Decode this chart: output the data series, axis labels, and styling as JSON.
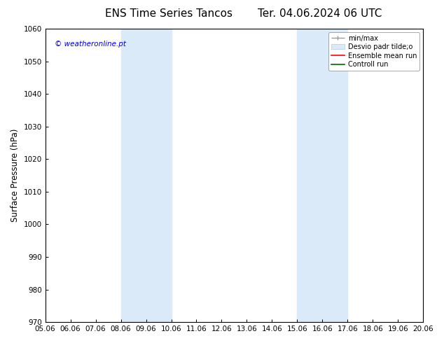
{
  "title_left": "ENS Time Series Tancos",
  "title_right": "Ter. 04.06.2024 06 UTC",
  "ylabel": "Surface Pressure (hPa)",
  "ylim": [
    970,
    1060
  ],
  "yticks": [
    970,
    980,
    990,
    1000,
    1010,
    1020,
    1030,
    1040,
    1050,
    1060
  ],
  "xtick_labels": [
    "05.06",
    "06.06",
    "07.06",
    "08.06",
    "09.06",
    "10.06",
    "11.06",
    "12.06",
    "13.06",
    "14.06",
    "15.06",
    "16.06",
    "17.06",
    "18.06",
    "19.06",
    "20.06"
  ],
  "n_xticks": 16,
  "shaded_regions": [
    {
      "start": 3,
      "end": 5,
      "color": "#daeaf8"
    },
    {
      "start": 10,
      "end": 12,
      "color": "#daeaf8"
    }
  ],
  "watermark": "© weatheronline.pt",
  "watermark_color": "#0000cc",
  "background_color": "#ffffff",
  "legend_labels": [
    "min/max",
    "Desvio padr tilde;o",
    "Ensemble mean run",
    "Controll run"
  ],
  "title_fontsize": 11,
  "tick_fontsize": 7.5,
  "ylabel_fontsize": 8.5
}
